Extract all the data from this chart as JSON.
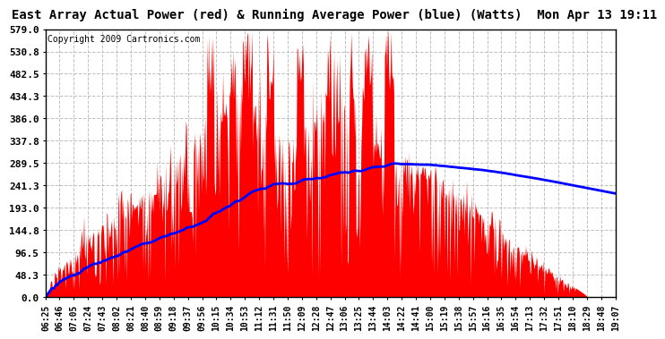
{
  "title": "East Array Actual Power (red) & Running Average Power (blue) (Watts)  Mon Apr 13 19:11",
  "copyright": "Copyright 2009 Cartronics.com",
  "yticks": [
    0.0,
    48.3,
    96.5,
    144.8,
    193.0,
    241.3,
    289.5,
    337.8,
    386.0,
    434.3,
    482.5,
    530.8,
    579.0
  ],
  "ymin": 0.0,
  "ymax": 579.0,
  "bg_color": "#ffffff",
  "plot_bg_color": "#ffffff",
  "grid_color": "#c0c0c0",
  "red_color": "#ff0000",
  "blue_color": "#0000ff",
  "title_fontsize": 10,
  "copyright_fontsize": 7,
  "xtick_fontsize": 7,
  "ytick_fontsize": 8,
  "xtick_labels": [
    "06:25",
    "06:46",
    "07:05",
    "07:24",
    "07:43",
    "08:02",
    "08:21",
    "08:40",
    "08:59",
    "09:18",
    "09:37",
    "09:56",
    "10:15",
    "10:34",
    "10:53",
    "11:12",
    "11:31",
    "11:50",
    "12:09",
    "12:28",
    "12:47",
    "13:06",
    "13:25",
    "13:44",
    "14:03",
    "14:22",
    "14:41",
    "15:00",
    "15:19",
    "15:38",
    "15:57",
    "16:16",
    "16:35",
    "16:54",
    "17:13",
    "17:32",
    "17:51",
    "18:10",
    "18:29",
    "18:48",
    "19:07"
  ]
}
